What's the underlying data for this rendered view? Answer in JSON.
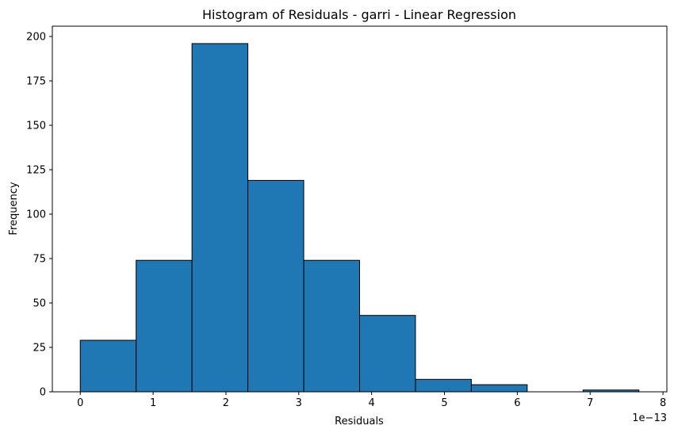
{
  "chart_data": {
    "type": "bar",
    "title": "Histogram of Residuals - garri  - Linear Regression",
    "xlabel": "Residuals",
    "ylabel": "Frequency",
    "x_offset_text": "1e−13",
    "bar_color": "#1f77b4",
    "edge_color": "#000000",
    "bin_edges": [
      0,
      0.767,
      1.534,
      2.301,
      3.068,
      3.835,
      4.602,
      5.369,
      6.136,
      6.903,
      7.67
    ],
    "values": [
      29,
      74,
      196,
      119,
      74,
      43,
      7,
      4,
      0,
      1
    ],
    "xlim": [
      -0.3835,
      8.0535
    ],
    "ylim": [
      0,
      205.8
    ],
    "xticks": [
      0,
      1,
      2,
      3,
      4,
      5,
      6,
      7,
      8
    ],
    "yticks": [
      0,
      25,
      50,
      75,
      100,
      125,
      150,
      175,
      200
    ],
    "grid": false
  }
}
